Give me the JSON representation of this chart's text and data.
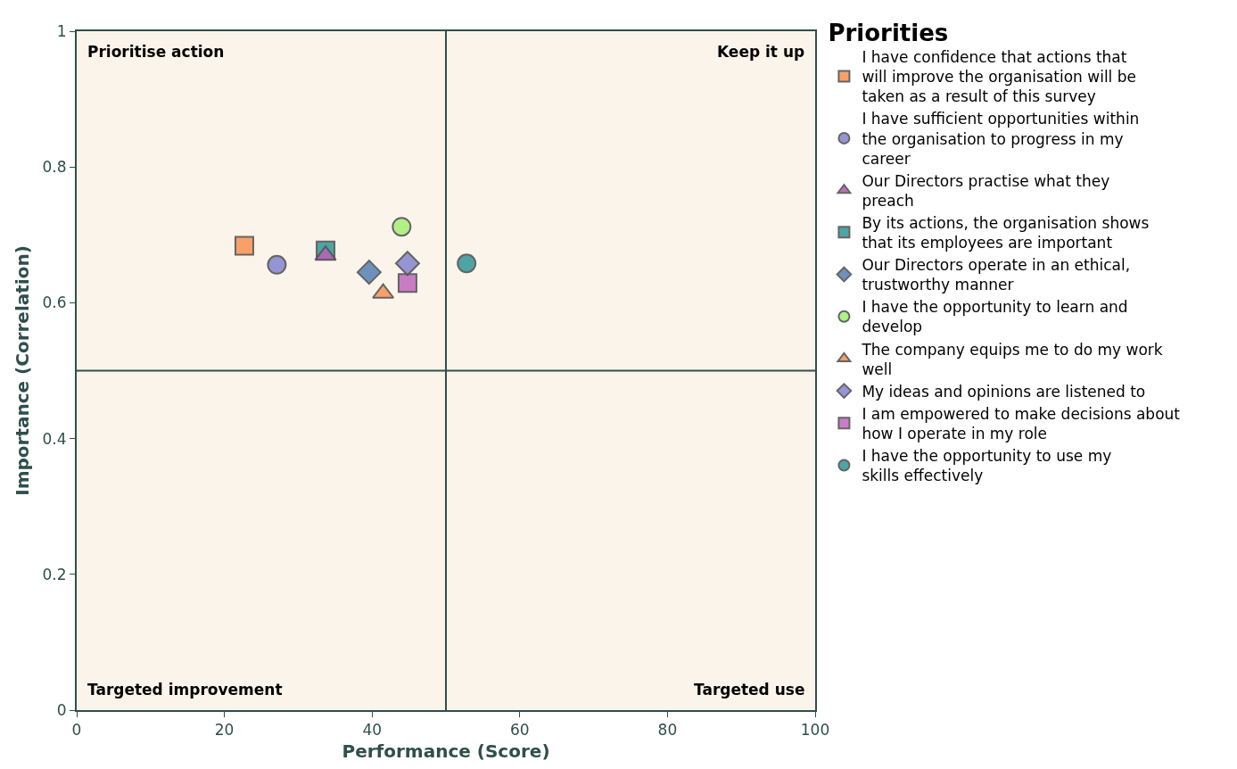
{
  "chart_data": {
    "type": "scatter",
    "xlabel": "Performance (Score)",
    "ylabel": "Importance (Correlation)",
    "legend_title": "Priorities",
    "xlim": [
      0,
      100
    ],
    "xticks": [
      0,
      20,
      40,
      60,
      80,
      100
    ],
    "ylim": [
      0,
      1
    ],
    "yticks": [
      0,
      0.2,
      0.4,
      0.6,
      0.8,
      1
    ],
    "grid": false,
    "legend": "right",
    "series": [
      {
        "name": "I have confidence that actions that will improve the organisation will be taken as a result of this survey",
        "color": "#f7975a",
        "marker": "square",
        "x": [
          22.7
        ],
        "values": [
          0.684
        ]
      },
      {
        "name": "I have sufficient opportunities within the organisation to progress in my career",
        "color": "#8a8ad2",
        "marker": "circle",
        "x": [
          27.1
        ],
        "values": [
          0.656
        ]
      },
      {
        "name": "Our Directors practise what they preach",
        "color": "#b463b8",
        "marker": "triangle",
        "x": [
          33.7
        ],
        "values": [
          0.67
        ]
      },
      {
        "name": "By its actions, the organisation shows that its employees are important",
        "color": "#3a9c9c",
        "marker": "square",
        "x": [
          33.7
        ],
        "values": [
          0.677
        ]
      },
      {
        "name": "Our Directors operate in an ethical, trustworthy manner",
        "color": "#5f86b8",
        "marker": "diamond",
        "x": [
          39.6
        ],
        "values": [
          0.645
        ]
      },
      {
        "name": "I have the opportunity to learn and develop",
        "color": "#a8f07c",
        "marker": "circle",
        "x": [
          44.0
        ],
        "values": [
          0.712
        ]
      },
      {
        "name": "The company equips me to do my work well",
        "color": "#f7975a",
        "marker": "triangle",
        "x": [
          41.5
        ],
        "values": [
          0.614
        ]
      },
      {
        "name": "My ideas and opinions are listened to",
        "color": "#8a8ad2",
        "marker": "diamond",
        "x": [
          44.8
        ],
        "values": [
          0.658
        ]
      },
      {
        "name": "I am empowered to make decisions about how I operate in my role",
        "color": "#c46fc0",
        "marker": "square",
        "x": [
          44.8
        ],
        "values": [
          0.629
        ]
      },
      {
        "name": "I have the opportunity to use my skills effectively",
        "color": "#3a9c9c",
        "marker": "circle",
        "x": [
          52.8
        ],
        "values": [
          0.658
        ]
      }
    ],
    "ref_lines": [
      {
        "axis": "x",
        "value": 50,
        "color": "#2f4f4a"
      },
      {
        "axis": "y",
        "value": 0.5,
        "color": "#2f4f4a"
      }
    ],
    "annotations": [
      "Prioritise action",
      "Keep it up",
      "Targeted improvement",
      "Targeted use"
    ]
  }
}
